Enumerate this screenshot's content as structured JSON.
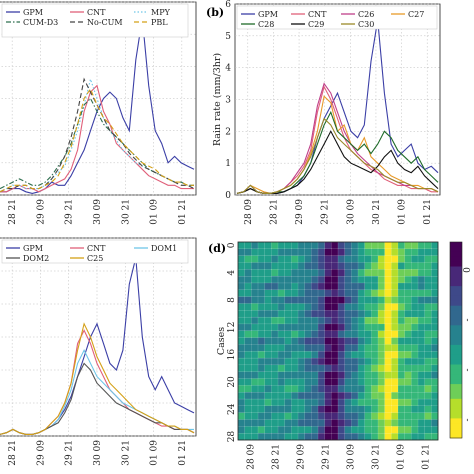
{
  "chart_data": [
    {
      "panel": "a",
      "type": "line",
      "x_tick_labels": [
        "28 21",
        "29 09",
        "29 21",
        "30 09",
        "30 21",
        "01 09",
        "01 21"
      ],
      "ylim": [
        0,
        6
      ],
      "grid": true,
      "legend_placement": "top",
      "series": [
        {
          "name": "GPM",
          "color": "#3b3fa6",
          "style": "solid",
          "values": [
            0.1,
            0.1,
            0.2,
            0.2,
            0.1,
            0.05,
            0.1,
            0.2,
            0.4,
            0.3,
            0.3,
            0.6,
            1.0,
            1.4,
            2.0,
            2.6,
            3.0,
            3.2,
            3.0,
            2.4,
            2.0,
            4.2,
            5.5,
            3.4,
            2.0,
            1.6,
            1.0,
            1.2,
            1.0,
            0.9,
            0.8
          ]
        },
        {
          "name": "CNT",
          "color": "#e0607a",
          "style": "solid",
          "values": [
            0.1,
            0.1,
            0.2,
            0.3,
            0.2,
            0.2,
            0.1,
            0.2,
            0.3,
            0.4,
            0.5,
            0.8,
            1.4,
            2.6,
            3.2,
            3.4,
            2.6,
            2.2,
            1.6,
            1.4,
            1.2,
            1.0,
            0.8,
            0.6,
            0.5,
            0.4,
            0.3,
            0.3,
            0.2,
            0.2,
            0.2
          ]
        },
        {
          "name": "MPY",
          "color": "#6fc6e8",
          "style": "dotted",
          "values": [
            0.1,
            0.2,
            0.3,
            0.3,
            0.2,
            0.2,
            0.2,
            0.3,
            0.5,
            0.7,
            0.9,
            1.4,
            2.0,
            2.8,
            3.6,
            3.0,
            2.4,
            2.0,
            1.7,
            1.4,
            1.2,
            1.0,
            0.9,
            0.8,
            0.7,
            0.6,
            0.5,
            0.4,
            0.4,
            0.3,
            0.3
          ]
        },
        {
          "name": "CUM-D3",
          "color": "#2f6f4f",
          "style": "dashdot",
          "values": [
            0.2,
            0.3,
            0.4,
            0.5,
            0.4,
            0.3,
            0.3,
            0.4,
            0.6,
            0.9,
            1.2,
            1.6,
            2.2,
            2.8,
            3.0,
            2.6,
            2.2,
            2.0,
            1.8,
            1.6,
            1.4,
            1.2,
            1.0,
            0.8,
            0.7,
            0.6,
            0.5,
            0.4,
            0.4,
            0.3,
            0.3
          ]
        },
        {
          "name": "No-CUM",
          "color": "#444444",
          "style": "dashed",
          "values": [
            0.1,
            0.2,
            0.2,
            0.3,
            0.3,
            0.2,
            0.2,
            0.3,
            0.5,
            0.8,
            1.2,
            1.8,
            2.6,
            3.6,
            3.2,
            2.8,
            2.4,
            2.0,
            1.8,
            1.6,
            1.3,
            1.1,
            0.9,
            0.8,
            0.7,
            0.6,
            0.5,
            0.4,
            0.3,
            0.3,
            0.2
          ]
        },
        {
          "name": "PBL",
          "color": "#d4a017",
          "style": "dashed",
          "values": [
            0.1,
            0.2,
            0.3,
            0.3,
            0.3,
            0.2,
            0.2,
            0.3,
            0.4,
            0.6,
            1.0,
            1.5,
            2.2,
            3.0,
            3.3,
            2.8,
            2.4,
            2.2,
            1.9,
            1.6,
            1.4,
            1.2,
            1.0,
            0.9,
            0.8,
            0.6,
            0.5,
            0.4,
            0.4,
            0.3,
            0.3
          ]
        }
      ]
    },
    {
      "panel": "b",
      "type": "line",
      "ylabel": "Rain rate (mm/3hr)",
      "y_ticks": [
        0,
        1,
        2,
        3,
        4,
        5,
        6
      ],
      "ylim": [
        0,
        6
      ],
      "x_tick_labels": [
        "28 09",
        "28 21",
        "29 09",
        "29 21",
        "30 09",
        "30 21",
        "01 09",
        "01 21"
      ],
      "grid": true,
      "legend_placement": "top",
      "series": [
        {
          "name": "GPM",
          "color": "#3b3fa6",
          "values": [
            0.05,
            0.1,
            0.3,
            0.1,
            0.05,
            0.05,
            0.05,
            0.1,
            0.2,
            0.3,
            0.6,
            1.0,
            1.8,
            2.4,
            2.8,
            3.2,
            2.6,
            2.0,
            1.8,
            2.2,
            4.2,
            5.5,
            3.2,
            1.6,
            1.2,
            1.4,
            1.6,
            1.0,
            0.8,
            0.9,
            0.7
          ]
        },
        {
          "name": "CNT",
          "color": "#e0607a",
          "values": [
            0.05,
            0.1,
            0.2,
            0.1,
            0.05,
            0.05,
            0.1,
            0.2,
            0.4,
            0.6,
            0.9,
            1.4,
            2.6,
            3.4,
            3.0,
            2.4,
            1.8,
            1.4,
            1.2,
            1.0,
            0.8,
            0.7,
            0.5,
            0.4,
            0.3,
            0.3,
            0.2,
            0.2,
            0.2,
            0.1,
            0.1
          ]
        },
        {
          "name": "C26",
          "color": "#c0408a",
          "values": [
            0.05,
            0.1,
            0.2,
            0.1,
            0.05,
            0.05,
            0.1,
            0.2,
            0.4,
            0.7,
            1.0,
            1.6,
            2.8,
            3.5,
            3.2,
            2.6,
            2.0,
            1.6,
            1.3,
            1.1,
            0.9,
            0.7,
            0.6,
            0.5,
            0.4,
            0.3,
            0.3,
            0.2,
            0.2,
            0.2,
            0.1
          ]
        },
        {
          "name": "C27",
          "color": "#e89a2a",
          "values": [
            0.05,
            0.1,
            0.3,
            0.2,
            0.1,
            0.05,
            0.1,
            0.2,
            0.3,
            0.5,
            0.8,
            1.3,
            2.0,
            3.1,
            2.9,
            2.0,
            2.2,
            1.6,
            1.4,
            1.8,
            1.2,
            1.0,
            0.8,
            0.6,
            0.5,
            0.4,
            0.3,
            0.3,
            0.2,
            0.2,
            0.1
          ]
        },
        {
          "name": "C28",
          "color": "#1f6b2a",
          "values": [
            0.05,
            0.1,
            0.2,
            0.1,
            0.05,
            0.05,
            0.1,
            0.1,
            0.2,
            0.4,
            0.6,
            1.0,
            1.6,
            2.2,
            2.6,
            2.0,
            1.8,
            1.6,
            1.4,
            1.6,
            1.3,
            1.6,
            2.0,
            1.8,
            1.4,
            1.2,
            1.0,
            1.2,
            0.8,
            0.6,
            0.4
          ]
        },
        {
          "name": "C29",
          "color": "#111111",
          "values": [
            0.05,
            0.1,
            0.2,
            0.1,
            0.05,
            0.05,
            0.05,
            0.1,
            0.2,
            0.3,
            0.5,
            0.8,
            1.2,
            1.6,
            2.0,
            1.6,
            1.2,
            1.0,
            0.9,
            0.8,
            0.7,
            0.9,
            1.2,
            1.4,
            1.0,
            0.8,
            0.7,
            0.9,
            0.6,
            0.4,
            0.2
          ]
        },
        {
          "name": "C30",
          "color": "#9a8a2a",
          "values": [
            0.05,
            0.1,
            0.3,
            0.1,
            0.05,
            0.05,
            0.1,
            0.2,
            0.3,
            0.5,
            0.8,
            1.2,
            1.8,
            2.4,
            2.2,
            1.8,
            1.6,
            1.4,
            1.2,
            1.0,
            0.9,
            0.8,
            0.6,
            0.5,
            0.4,
            0.4,
            0.3,
            0.2,
            0.2,
            0.2,
            0.1
          ]
        }
      ]
    },
    {
      "panel": "c",
      "type": "line",
      "x_tick_labels": [
        "28 21",
        "29 09",
        "29 21",
        "30 09",
        "30 21",
        "01 09",
        "01 21"
      ],
      "ylim": [
        0,
        6
      ],
      "grid": true,
      "legend_placement": "top",
      "series": [
        {
          "name": "GPM",
          "color": "#3b3fa6",
          "values": [
            0.05,
            0.1,
            0.2,
            0.1,
            0.05,
            0.05,
            0.1,
            0.2,
            0.3,
            0.5,
            0.8,
            1.2,
            1.8,
            2.4,
            3.0,
            3.4,
            2.8,
            2.2,
            2.0,
            2.6,
            4.6,
            5.4,
            3.0,
            1.8,
            1.4,
            1.8,
            1.4,
            1.0,
            0.9,
            0.8,
            0.7
          ]
        },
        {
          "name": "CNT",
          "color": "#e0607a",
          "values": [
            0.05,
            0.1,
            0.2,
            0.1,
            0.05,
            0.05,
            0.1,
            0.2,
            0.4,
            0.6,
            1.0,
            1.6,
            2.8,
            3.2,
            2.8,
            2.2,
            1.8,
            1.4,
            1.2,
            1.0,
            0.8,
            0.7,
            0.6,
            0.5,
            0.4,
            0.3,
            0.3,
            0.2,
            0.2,
            0.2,
            0.1
          ]
        },
        {
          "name": "DOM1",
          "color": "#6fc6e8",
          "values": [
            0.05,
            0.1,
            0.2,
            0.1,
            0.05,
            0.05,
            0.1,
            0.2,
            0.3,
            0.5,
            0.9,
            1.4,
            2.2,
            2.6,
            2.2,
            1.8,
            1.6,
            1.4,
            1.2,
            1.0,
            0.9,
            0.8,
            0.7,
            0.6,
            0.5,
            0.4,
            0.3,
            0.3,
            0.2,
            0.2,
            0.2
          ]
        },
        {
          "name": "DOM2",
          "color": "#555555",
          "values": [
            0.05,
            0.1,
            0.2,
            0.1,
            0.05,
            0.05,
            0.1,
            0.2,
            0.3,
            0.4,
            0.7,
            1.1,
            1.8,
            2.2,
            2.0,
            1.6,
            1.4,
            1.2,
            1.0,
            0.9,
            0.8,
            0.7,
            0.6,
            0.5,
            0.4,
            0.4,
            0.3,
            0.2,
            0.2,
            0.2,
            0.1
          ]
        },
        {
          "name": "C25",
          "color": "#d4a017",
          "values": [
            0.05,
            0.1,
            0.2,
            0.1,
            0.05,
            0.05,
            0.1,
            0.2,
            0.4,
            0.6,
            1.0,
            1.6,
            2.6,
            3.4,
            3.0,
            2.4,
            2.0,
            1.6,
            1.4,
            1.2,
            1.0,
            0.8,
            0.7,
            0.6,
            0.5,
            0.4,
            0.3,
            0.3,
            0.2,
            0.2,
            0.1
          ]
        }
      ]
    },
    {
      "panel": "d",
      "type": "heatmap",
      "ylabel": "Cases",
      "y_ticks": [
        0,
        4,
        8,
        12,
        16,
        20,
        24,
        28
      ],
      "x_tick_labels": [
        "28 09",
        "28 21",
        "29 09",
        "29 21",
        "30 09",
        "30 21",
        "01 09",
        "01 21"
      ],
      "n_rows": 29,
      "n_cols": 30,
      "colormap": [
        "#fde725",
        "#b5de2b",
        "#6ece58",
        "#35b779",
        "#1f9e89",
        "#26828e",
        "#31688e",
        "#3e4989",
        "#482878",
        "#440154"
      ],
      "colorbar_tick_labels": [
        "0",
        "-",
        "-",
        "-"
      ],
      "column_profile": [
        0.45,
        0.45,
        0.45,
        0.45,
        0.45,
        0.45,
        0.45,
        0.45,
        0.45,
        0.5,
        0.55,
        0.6,
        0.7,
        0.85,
        0.9,
        0.75,
        0.6,
        0.55,
        0.45,
        0.35,
        0.3,
        0.2,
        0.0,
        0.1,
        0.3,
        0.3,
        0.35,
        0.4,
        0.35,
        0.4
      ],
      "row_profile": [
        0.0,
        0.05,
        0.0,
        0.05,
        0.0,
        0.05,
        0.1,
        0.0,
        0.1,
        0.0,
        0.05,
        0.0,
        0.05,
        0.0,
        0.1,
        0.05,
        0.0,
        0.05,
        0.0,
        0.05,
        0.0,
        0.0,
        0.05,
        0.0,
        0.05,
        0.0,
        0.05,
        0.0,
        0.05
      ]
    }
  ]
}
